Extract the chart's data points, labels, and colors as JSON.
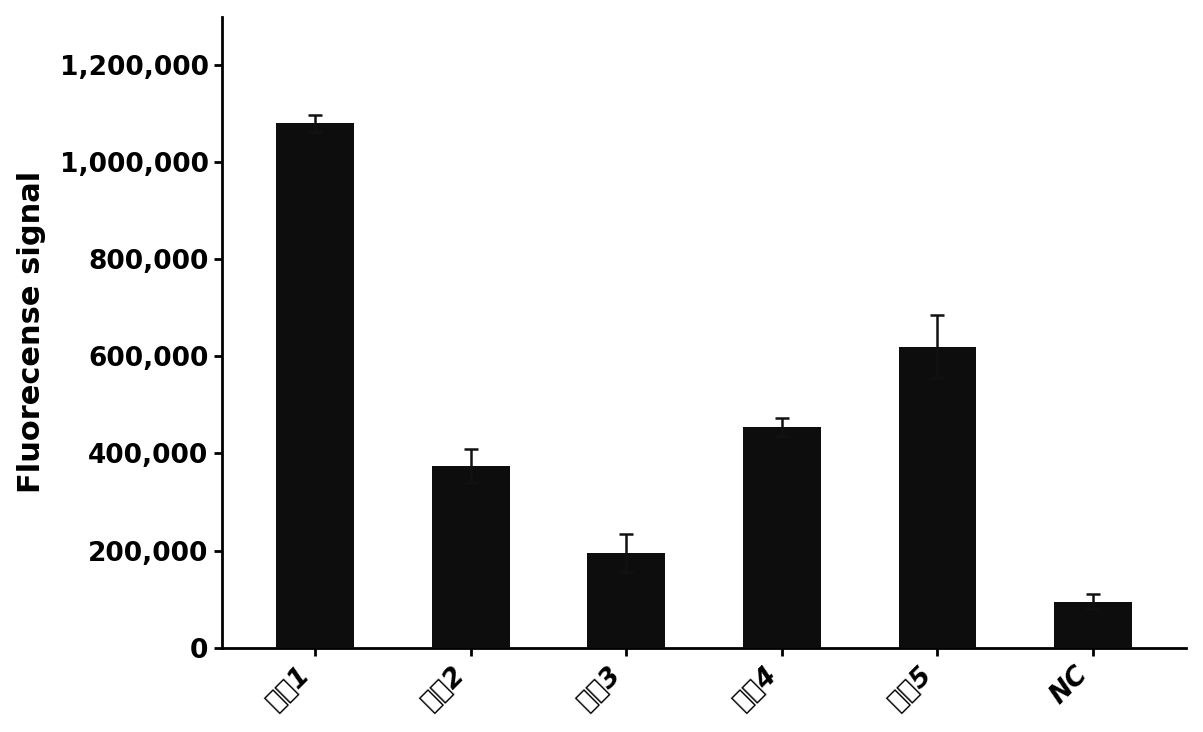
{
  "categories": [
    "引爥1",
    "引爥2",
    "引爥3",
    "引爥4",
    "引爥5",
    "NC"
  ],
  "values": [
    1080000,
    375000,
    195000,
    455000,
    620000,
    95000
  ],
  "errors": [
    18000,
    35000,
    40000,
    18000,
    65000,
    15000
  ],
  "bar_color": "#0d0d0d",
  "bar_width": 0.5,
  "ylabel": "Fluorecense signal",
  "ylim": [
    0,
    1300000
  ],
  "yticks": [
    0,
    200000,
    400000,
    600000,
    800000,
    1000000,
    1200000
  ],
  "background_color": "#ffffff",
  "ylabel_fontsize": 22,
  "tick_fontsize": 19,
  "xlabel_fontsize": 19,
  "error_capsize": 5,
  "error_linewidth": 1.8,
  "error_color": "#111111",
  "xtick_rotation": 45
}
